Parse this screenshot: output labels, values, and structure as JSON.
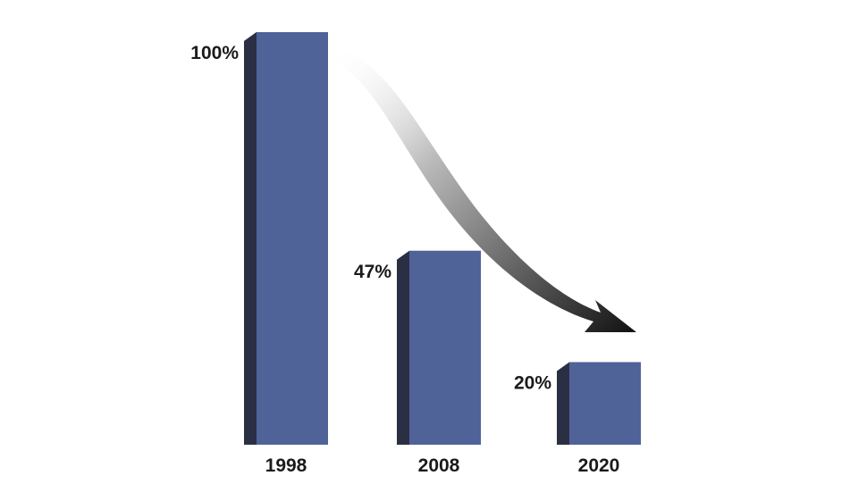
{
  "chart_data": {
    "type": "bar",
    "categories": [
      "1998",
      "2008",
      "2020"
    ],
    "values": [
      100,
      47,
      20
    ],
    "value_labels": [
      "100%",
      "47%",
      "20%"
    ],
    "ylim": [
      0,
      100
    ],
    "unit": "%",
    "grid": false,
    "legend": "none",
    "trend_arrow": "decreasing",
    "colors": {
      "bar_front": "#4f6399",
      "bar_side": "#2b2f44",
      "bar_top": "#2b2f44",
      "arrow_dark": "#111111",
      "arrow_light": "#ffffff",
      "label": "#1a1a1a"
    }
  }
}
